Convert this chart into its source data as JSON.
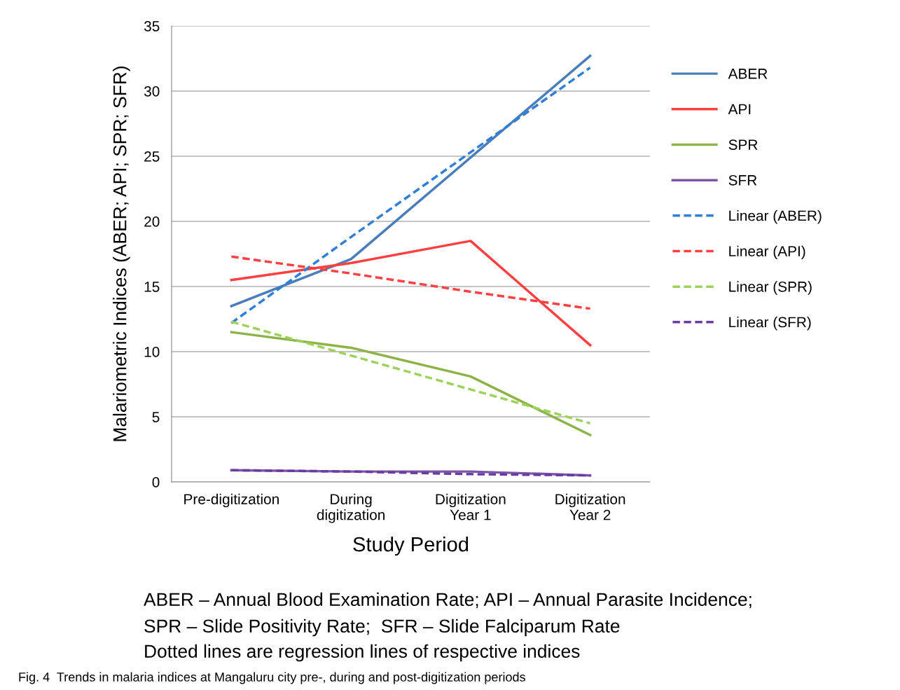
{
  "chart_data": {
    "type": "line",
    "xlabel": "Study Period",
    "ylabel": "Malariometric Indices (ABER; API; SPR; SFR)",
    "categories": [
      "Pre-digitization",
      "During\ndigitization",
      "Digitization\nYear 1",
      "Digitization\nYear 2"
    ],
    "series": [
      {
        "name": "ABER",
        "color": "#4a7ebb",
        "values": [
          13.5,
          17.1,
          24.9,
          32.7
        ]
      },
      {
        "name": "API",
        "color": "#ff4040",
        "values": [
          15.5,
          16.8,
          18.5,
          10.5
        ]
      },
      {
        "name": "SPR",
        "color": "#8db348",
        "values": [
          11.5,
          10.3,
          8.1,
          3.6
        ]
      },
      {
        "name": "SFR",
        "color": "#7d55a6",
        "values": [
          0.9,
          0.8,
          0.8,
          0.5
        ]
      },
      {
        "name": "Linear (ABER)",
        "color": "#2f7ed8",
        "line_style": "dashed",
        "values": [
          12.2,
          18.8,
          25.3,
          31.8
        ]
      },
      {
        "name": "Linear (API)",
        "color": "#ff4040",
        "line_style": "dashed",
        "values": [
          17.3,
          16.0,
          14.6,
          13.3
        ]
      },
      {
        "name": "Linear (SPR)",
        "color": "#9bd35a",
        "line_style": "dashed",
        "values": [
          12.3,
          9.7,
          7.1,
          4.5
        ]
      },
      {
        "name": "Linear (SFR)",
        "color": "#6a3aa6",
        "line_style": "dashed",
        "values": [
          0.9,
          0.8,
          0.6,
          0.5
        ]
      }
    ],
    "ylim": [
      0,
      35
    ],
    "yticks": [
      0,
      5,
      10,
      15,
      20,
      25,
      30,
      35
    ],
    "grid": "y",
    "legend": "right",
    "marker": "none",
    "line_style": "solid",
    "annotations": [
      "ABER – Annual Blood Examination Rate; API – Annual Parasite Incidence;",
      "SPR – Slide Positivity Rate;  SFR – Slide Falciparum Rate",
      "Dotted lines are regression lines of respective indices",
      "Fig. 4  Trends in malaria indices at Mangaluru city pre-, during and post-digitization periods"
    ]
  }
}
